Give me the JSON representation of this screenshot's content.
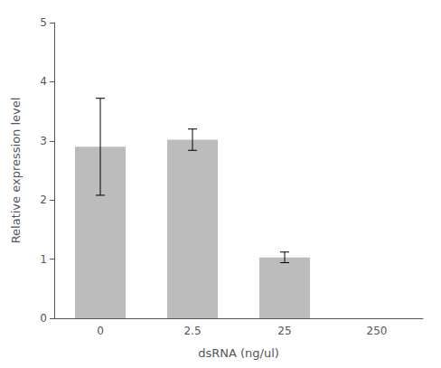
{
  "chart_data": {
    "type": "bar",
    "categories": [
      "0",
      "2.5",
      "25",
      "250"
    ],
    "values": [
      2.9,
      3.02,
      1.03,
      null
    ],
    "errors": [
      0.82,
      0.18,
      0.09,
      null
    ],
    "color": "#bcbcbc",
    "xlabel": "dsRNA (ng/ul)",
    "ylabel": "Relative expression level",
    "ylim": [
      0,
      5
    ],
    "yticks": [
      0,
      1,
      2,
      3,
      4,
      5
    ],
    "grid": false
  }
}
